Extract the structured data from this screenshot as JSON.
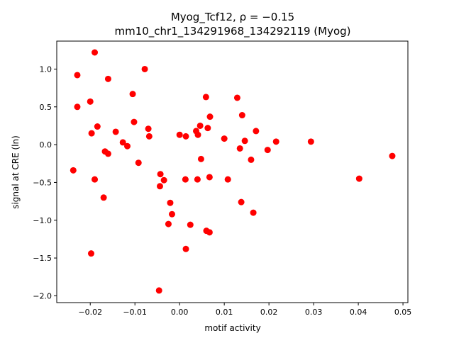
{
  "chart_data": {
    "type": "scatter",
    "title_line1": "Myog_Tcf12, ρ = −0.15",
    "title_line2": "mm10_chr1_134291968_134292119 (Myog)",
    "xlabel": "motif activity",
    "ylabel": "signal at CRE (ln)",
    "xlim": [
      -0.0275,
      0.0511
    ],
    "ylim": [
      -2.09,
      1.37
    ],
    "xticks": [
      -0.02,
      -0.01,
      0.0,
      0.01,
      0.02,
      0.03,
      0.04,
      0.05
    ],
    "xtick_labels": [
      "−0.02",
      "−0.01",
      "0.00",
      "0.01",
      "0.02",
      "0.03",
      "0.04",
      "0.05"
    ],
    "yticks": [
      1.0,
      0.5,
      0.0,
      -0.5,
      -1.0,
      -1.5,
      -2.0
    ],
    "ytick_labels": [
      "1.0",
      "0.5",
      "0.0",
      "−0.5",
      "−1.0",
      "−1.5",
      "−2.0"
    ],
    "grid": false,
    "marker_color": "#ff0000",
    "points": [
      [
        -0.019,
        1.22
      ],
      [
        -0.0229,
        0.92
      ],
      [
        -0.0078,
        1.0
      ],
      [
        -0.016,
        0.87
      ],
      [
        -0.0105,
        0.67
      ],
      [
        -0.0229,
        0.5
      ],
      [
        -0.02,
        0.57
      ],
      [
        0.0059,
        0.63
      ],
      [
        0.0129,
        0.62
      ],
      [
        -0.0197,
        0.15
      ],
      [
        -0.0184,
        0.24
      ],
      [
        -0.0143,
        0.17
      ],
      [
        -0.0102,
        0.3
      ],
      [
        -0.007,
        0.21
      ],
      [
        -0.0068,
        0.11
      ],
      [
        -0.0127,
        0.03
      ],
      [
        -0.0117,
        -0.02
      ],
      [
        -0.0167,
        -0.09
      ],
      [
        -0.016,
        -0.12
      ],
      [
        -0.0092,
        -0.24
      ],
      [
        -0.0238,
        -0.34
      ],
      [
        -0.019,
        -0.46
      ],
      [
        -0.017,
        -0.7
      ],
      [
        -0.0043,
        -0.39
      ],
      [
        -0.0035,
        -0.47
      ],
      [
        -0.0044,
        -0.55
      ],
      [
        0.0013,
        -0.46
      ],
      [
        0.004,
        -0.46
      ],
      [
        0.0048,
        -0.19
      ],
      [
        0.0067,
        -0.43
      ],
      [
        0.0108,
        -0.46
      ],
      [
        0.0068,
        0.37
      ],
      [
        0.0063,
        0.22
      ],
      [
        0.0037,
        0.18
      ],
      [
        0.0041,
        0.13
      ],
      [
        0.0046,
        0.25
      ],
      [
        0.0,
        0.13
      ],
      [
        0.0014,
        0.11
      ],
      [
        0.01,
        0.08
      ],
      [
        0.0135,
        -0.05
      ],
      [
        0.0146,
        0.05
      ],
      [
        0.016,
        -0.2
      ],
      [
        0.0171,
        0.18
      ],
      [
        0.014,
        0.39
      ],
      [
        0.0197,
        -0.07
      ],
      [
        0.0216,
        0.04
      ],
      [
        0.0294,
        0.04
      ],
      [
        0.0402,
        -0.45
      ],
      [
        0.0476,
        -0.15
      ],
      [
        -0.0021,
        -0.77
      ],
      [
        -0.0017,
        -0.92
      ],
      [
        -0.0025,
        -1.05
      ],
      [
        0.0024,
        -1.06
      ],
      [
        0.0014,
        -1.38
      ],
      [
        0.006,
        -1.14
      ],
      [
        0.0067,
        -1.16
      ],
      [
        0.0138,
        -0.76
      ],
      [
        0.0165,
        -0.9
      ],
      [
        -0.0198,
        -1.44
      ],
      [
        -0.0046,
        -1.93
      ]
    ]
  }
}
